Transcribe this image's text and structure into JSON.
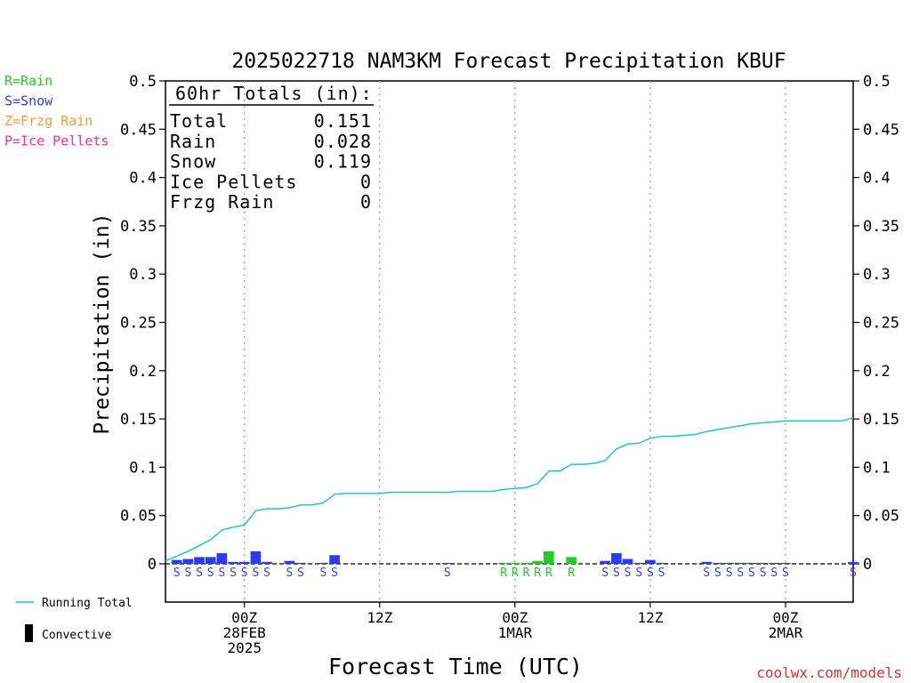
{
  "chart_data": {
    "type": "bar",
    "title": "2025022718 NAM3KM Forecast Precipitation KBUF",
    "xlabel": "Forecast Time (UTC)",
    "ylabel": "Precipitation (in)",
    "ylim": [
      0,
      0.5
    ],
    "yticks": [
      "0",
      "0.05",
      "0.1",
      "0.15",
      "0.2",
      "0.25",
      "0.3",
      "0.35",
      "0.4",
      "0.45",
      "0.5"
    ],
    "x_unit": "forecast hour (from 2025-02-27 18Z)",
    "xlim": [
      -1,
      60
    ],
    "xticks": [
      {
        "hour": 6,
        "lines": [
          "00Z",
          "28FEB",
          "2025"
        ]
      },
      {
        "hour": 18,
        "lines": [
          "12Z"
        ]
      },
      {
        "hour": 30,
        "lines": [
          "00Z",
          "1MAR"
        ]
      },
      {
        "hour": 42,
        "lines": [
          "12Z"
        ]
      },
      {
        "hour": 54,
        "lines": [
          "00Z",
          "2MAR"
        ]
      }
    ],
    "grid": "vertical dotted lines at 00Z and 12Z",
    "precip_type_legend": [
      {
        "label": "R=Rain",
        "color": "#22cc22"
      },
      {
        "label": "S=Snow",
        "color": "#2b3cf0"
      },
      {
        "label": "Z=Frzg Rain",
        "color": "#ff9933"
      },
      {
        "label": "P=Ice Pellets",
        "color": "#ff2d8d"
      }
    ],
    "series_legend": [
      {
        "label": "Running Total",
        "color": "#1fc8c8"
      },
      {
        "label": "Convective",
        "color": "#000000"
      }
    ],
    "totals": {
      "header": "60hr Totals (in):",
      "rows": [
        {
          "label": "Total",
          "value": "0.151"
        },
        {
          "label": "Rain",
          "value": "0.028"
        },
        {
          "label": "Snow",
          "value": "0.119"
        },
        {
          "label": "Ice Pellets",
          "value": "0"
        },
        {
          "label": "Frzg Rain",
          "value": "0"
        }
      ]
    },
    "hourly_precip": [
      {
        "hour": 0,
        "value": 0.004,
        "type": "S"
      },
      {
        "hour": 1,
        "value": 0.005,
        "type": "S"
      },
      {
        "hour": 2,
        "value": 0.007,
        "type": "S"
      },
      {
        "hour": 3,
        "value": 0.007,
        "type": "S"
      },
      {
        "hour": 4,
        "value": 0.011,
        "type": "S"
      },
      {
        "hour": 5,
        "value": 0.002,
        "type": "S"
      },
      {
        "hour": 6,
        "value": 0.002,
        "type": "S"
      },
      {
        "hour": 7,
        "value": 0.013,
        "type": "S"
      },
      {
        "hour": 8,
        "value": 0.002,
        "type": "S"
      },
      {
        "hour": 10,
        "value": 0.003,
        "type": "S"
      },
      {
        "hour": 11,
        "value": 0.001,
        "type": "S"
      },
      {
        "hour": 13,
        "value": 0.001,
        "type": "S"
      },
      {
        "hour": 14,
        "value": 0.009,
        "type": "S"
      },
      {
        "hour": 24,
        "value": 0.0005,
        "type": "S"
      },
      {
        "hour": 29,
        "value": 0.0008,
        "type": "R"
      },
      {
        "hour": 30,
        "value": 0.001,
        "type": "R"
      },
      {
        "hour": 31,
        "value": 0.001,
        "type": "R"
      },
      {
        "hour": 32,
        "value": 0.003,
        "type": "R"
      },
      {
        "hour": 33,
        "value": 0.013,
        "type": "R"
      },
      {
        "hour": 35,
        "value": 0.007,
        "type": "R"
      },
      {
        "hour": 38,
        "value": 0.003,
        "type": "S"
      },
      {
        "hour": 39,
        "value": 0.011,
        "type": "S"
      },
      {
        "hour": 40,
        "value": 0.005,
        "type": "S"
      },
      {
        "hour": 41,
        "value": 0.001,
        "type": "S"
      },
      {
        "hour": 42,
        "value": 0.004,
        "type": "S"
      },
      {
        "hour": 43,
        "value": 0.001,
        "type": "S"
      },
      {
        "hour": 47,
        "value": 0.002,
        "type": "S"
      },
      {
        "hour": 48,
        "value": 0.001,
        "type": "S"
      },
      {
        "hour": 49,
        "value": 0.001,
        "type": "S"
      },
      {
        "hour": 50,
        "value": 0.001,
        "type": "S"
      },
      {
        "hour": 51,
        "value": 0.001,
        "type": "S"
      },
      {
        "hour": 52,
        "value": 0.0005,
        "type": "S"
      },
      {
        "hour": 53,
        "value": 0.0005,
        "type": "S"
      },
      {
        "hour": 54,
        "value": 0.0005,
        "type": "S"
      },
      {
        "hour": 60,
        "value": 0.002,
        "type": "S"
      }
    ],
    "running_total": [
      [
        -1,
        0.003
      ],
      [
        0,
        0.008
      ],
      [
        1,
        0.013
      ],
      [
        2,
        0.019
      ],
      [
        3,
        0.025
      ],
      [
        4,
        0.035
      ],
      [
        5,
        0.038
      ],
      [
        6,
        0.04
      ],
      [
        7,
        0.055
      ],
      [
        8,
        0.057
      ],
      [
        9,
        0.057
      ],
      [
        10,
        0.058
      ],
      [
        11,
        0.061
      ],
      [
        12,
        0.061
      ],
      [
        13,
        0.063
      ],
      [
        14,
        0.072
      ],
      [
        15,
        0.073
      ],
      [
        18,
        0.073
      ],
      [
        19,
        0.074
      ],
      [
        24,
        0.074
      ],
      [
        25,
        0.075
      ],
      [
        28,
        0.075
      ],
      [
        29,
        0.077
      ],
      [
        30,
        0.078
      ],
      [
        31,
        0.079
      ],
      [
        32,
        0.083
      ],
      [
        33,
        0.096
      ],
      [
        34,
        0.096
      ],
      [
        35,
        0.103
      ],
      [
        36,
        0.103
      ],
      [
        37,
        0.104
      ],
      [
        38,
        0.107
      ],
      [
        39,
        0.119
      ],
      [
        40,
        0.124
      ],
      [
        41,
        0.125
      ],
      [
        42,
        0.13
      ],
      [
        43,
        0.132
      ],
      [
        44,
        0.132
      ],
      [
        45,
        0.133
      ],
      [
        46,
        0.134
      ],
      [
        47,
        0.137
      ],
      [
        48,
        0.139
      ],
      [
        49,
        0.141
      ],
      [
        50,
        0.143
      ],
      [
        51,
        0.145
      ],
      [
        52,
        0.146
      ],
      [
        53,
        0.147
      ],
      [
        54,
        0.148
      ],
      [
        55,
        0.148
      ],
      [
        59,
        0.148
      ],
      [
        60,
        0.151
      ]
    ]
  },
  "footer": {
    "credit": "coolwx.com/models"
  }
}
